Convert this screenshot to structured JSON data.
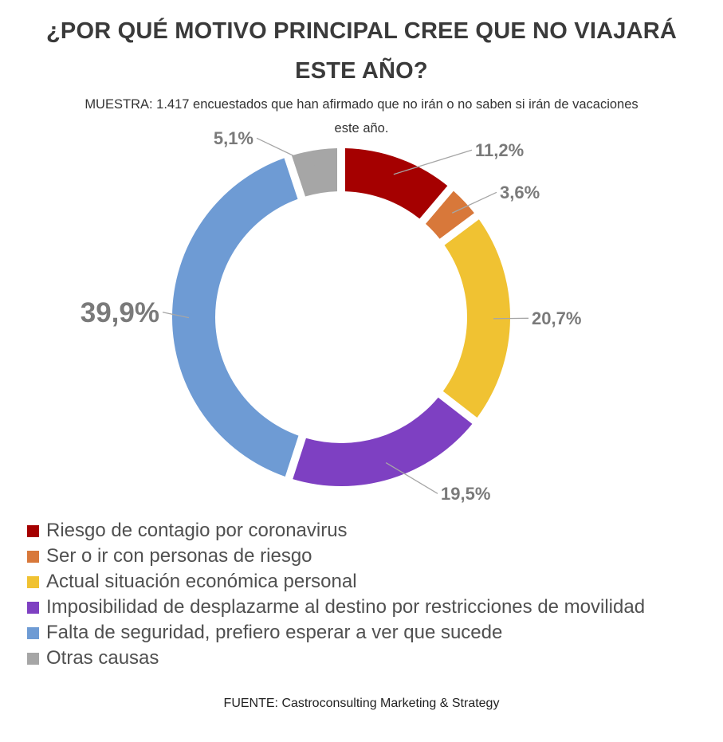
{
  "title": "¿POR QUÉ MOTIVO PRINCIPAL CREE QUE NO VIAJARÁ ESTE AÑO?",
  "subtitle": "MUESTRA: 1.417 encuestados que han afirmado que no irán o no saben si irán de vacaciones este año.",
  "source": "FUENTE: Castroconsulting Marketing & Strategy",
  "chart_data": {
    "type": "pie",
    "variant": "donut",
    "legend_position": "bottom-left",
    "categories": [
      "Riesgo de contagio por coronavirus",
      "Ser o ir con personas de riesgo",
      "Actual situación económica personal",
      "Imposibilidad de desplazarme al destino por restricciones de movilidad",
      "Falta de seguridad, prefiero esperar a ver que sucede",
      "Otras causas"
    ],
    "values": [
      11.2,
      3.6,
      20.7,
      19.5,
      39.9,
      5.1
    ],
    "labels": [
      "11,2%",
      "3,6%",
      "20,7%",
      "19,5%",
      "39,9%",
      "5,1%"
    ],
    "colors": [
      "#a50000",
      "#d8783a",
      "#f0c232",
      "#7e40c2",
      "#6e9bd4",
      "#a6a6a6"
    ]
  }
}
